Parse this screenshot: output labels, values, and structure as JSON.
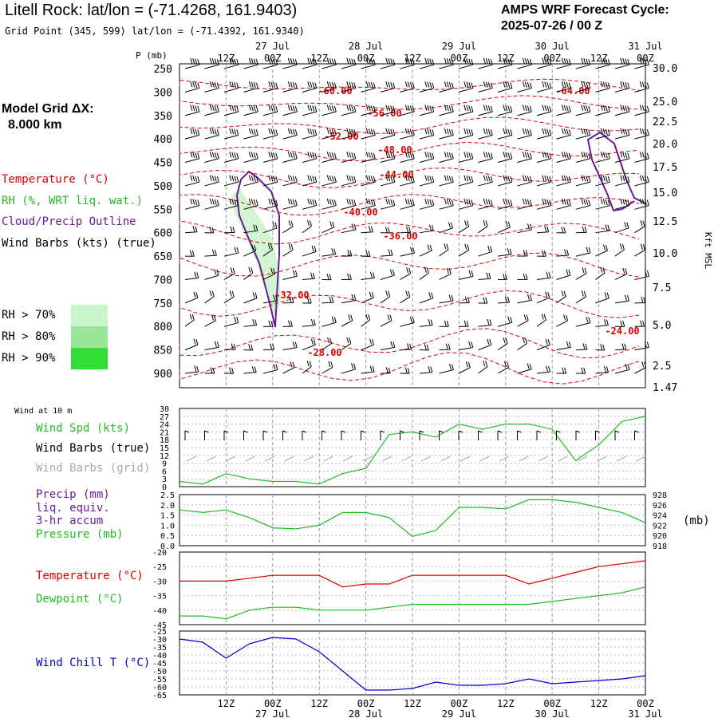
{
  "header": {
    "title": "Litell Rock:  lat/lon = (-71.4268, 161.9403)",
    "grid_point": "Grid Point (345, 599) lat/lon = (-71.4392, 161.9340)",
    "cycle_label": "AMPS WRF Forecast Cycle:",
    "cycle_time": "2025-07-26 / 00  Z"
  },
  "model_grid": {
    "label": "Model Grid ΔX:",
    "value": "8.000 km"
  },
  "legend_upper": {
    "temperature": "Temperature (°C)",
    "rh": "RH (%, WRT liq. wat.)",
    "cloud": "Cloud/Precip Outline",
    "wind": "Wind Barbs (kts) (true)",
    "rh70": "RH > 70%",
    "rh80": "RH > 80%",
    "rh90": "RH > 90%"
  },
  "legend_lower": {
    "wind_at": "Wind at 10 m",
    "wind_spd": "Wind Spd (kts)",
    "barbs_true": "Wind Barbs (true)",
    "barbs_grid": "Wind Barbs (grid)",
    "precip1": "Precip (mm)",
    "precip2": "liq. equiv.",
    "precip3": "3-hr accum",
    "pressure": "Pressure (mb)",
    "pressure_unit": "(mb)",
    "temperature": "Temperature (°C)",
    "dewpoint": "Dewpoint (°C)",
    "windchill": "Wind Chill T (°C)"
  },
  "colors": {
    "temperature": "#dd0000",
    "rh": "#22bb22",
    "cloud": "#6a1b9a",
    "wind": "#000000",
    "wind_grid": "#aaaaaa",
    "windchill": "#0000cc",
    "rh70": "#ccf5cc",
    "rh80": "#99e699",
    "rh90": "#33dd33"
  },
  "chart_data": [
    {
      "type": "line",
      "panel": "time-height cross section",
      "ylabel_left": "P (mb)",
      "ylabel_right": "Kft MSL",
      "pressure_levels": [
        250,
        300,
        350,
        400,
        450,
        500,
        550,
        600,
        650,
        700,
        750,
        800,
        850,
        900
      ],
      "height_ticks_kft": [
        "30.0",
        "25.0",
        "22.5",
        "20.0",
        "17.5",
        "15.0",
        "12.5",
        "10.0",
        "7.5",
        "5.0",
        "2.5",
        "1.47"
      ],
      "time_ticks_top": [
        "12Z",
        "00Z",
        "12Z",
        "00Z",
        "12Z",
        "00Z",
        "12Z",
        "00Z",
        "12Z",
        "00Z"
      ],
      "date_ticks_top": [
        "27 Jul",
        "28 Jul",
        "29 Jul",
        "30 Jul",
        "31 Jul"
      ],
      "temperature_contour_labels": [
        "-60.00",
        "-64.00",
        "-56.00",
        "-52.00",
        "-48.00",
        "-44.00",
        "-40.00",
        "-36.00",
        "-32.00",
        "-28.00",
        "-24.00"
      ]
    },
    {
      "type": "line",
      "panel": "10 m wind speed",
      "ylim": [
        0,
        30
      ],
      "yticks": [
        "30",
        "27",
        "24",
        "21",
        "18",
        "15",
        "12",
        "9",
        "6",
        "3",
        "0"
      ],
      "x_hours": [
        0,
        6,
        12,
        18,
        24,
        30,
        36,
        42,
        48,
        54,
        60,
        66,
        72,
        78,
        84,
        90,
        96,
        102,
        108,
        114,
        120
      ],
      "series": [
        {
          "name": "Wind Spd (kts)",
          "values": [
            2,
            1,
            5,
            3,
            2,
            2,
            1,
            5,
            7,
            20,
            21,
            19,
            24,
            22,
            24,
            24,
            22,
            10,
            16,
            25,
            27
          ]
        }
      ]
    },
    {
      "type": "line",
      "panel": "precip and pressure",
      "ylim_left": [
        0,
        2.5
      ],
      "yticks_left": [
        "2.5",
        "2.0",
        "1.5",
        "1.0",
        "0.5",
        "0.0"
      ],
      "ylim_right": [
        918,
        928
      ],
      "yticks_right": [
        "928",
        "926",
        "924",
        "922",
        "920",
        "918"
      ],
      "series": [
        {
          "name": "Pressure (mb)",
          "x_hours": [
            0,
            6,
            12,
            18,
            24,
            30,
            36,
            42,
            48,
            54,
            60,
            66,
            72,
            78,
            84,
            90,
            96,
            102,
            108,
            114,
            120
          ],
          "values": [
            925,
            924.5,
            925,
            923.5,
            921.5,
            921.3,
            922,
            924.5,
            924.5,
            923.5,
            919.8,
            921,
            925.5,
            925.5,
            925.2,
            927,
            927,
            926.5,
            925.5,
            924.5,
            922.5
          ]
        }
      ]
    },
    {
      "type": "line",
      "panel": "temperature and dewpoint",
      "ylim": [
        -45,
        -20
      ],
      "yticks": [
        "-20",
        "-25",
        "-30",
        "-35",
        "-40",
        "-45"
      ],
      "series": [
        {
          "name": "Temperature (°C)",
          "x_hours": [
            0,
            6,
            12,
            18,
            24,
            30,
            36,
            42,
            48,
            54,
            60,
            66,
            72,
            78,
            84,
            90,
            96,
            102,
            108,
            114,
            120
          ],
          "values": [
            -30,
            -30,
            -30,
            -29,
            -28,
            -28,
            -28,
            -32,
            -31,
            -31,
            -28,
            -28,
            -28,
            -28,
            -28,
            -31,
            -29,
            -27,
            -25,
            -24,
            -23
          ]
        },
        {
          "name": "Dewpoint (°C)",
          "x_hours": [
            0,
            6,
            12,
            18,
            24,
            30,
            36,
            42,
            48,
            54,
            60,
            66,
            72,
            78,
            84,
            90,
            96,
            102,
            108,
            114,
            120
          ],
          "values": [
            -42,
            -42,
            -43,
            -40,
            -39,
            -39,
            -40,
            -40,
            -40,
            -39,
            -38,
            -38,
            -38,
            -38,
            -38,
            -38,
            -37,
            -36,
            -35,
            -34,
            -32
          ]
        }
      ]
    },
    {
      "type": "line",
      "panel": "wind chill",
      "ylim": [
        -65,
        -25
      ],
      "yticks": [
        "-25",
        "-30",
        "-35",
        "-40",
        "-45",
        "-50",
        "-55",
        "-60",
        "-65"
      ],
      "time_ticks_bottom": [
        "12Z",
        "00Z",
        "12Z",
        "00Z",
        "12Z",
        "00Z",
        "12Z",
        "00Z",
        "12Z",
        "00Z"
      ],
      "date_ticks_bottom": [
        "27 Jul",
        "28 Jul",
        "29 Jul",
        "30 Jul",
        "31 Jul"
      ],
      "series": [
        {
          "name": "Wind Chill T (°C)",
          "x_hours": [
            0,
            6,
            12,
            18,
            24,
            30,
            36,
            42,
            48,
            54,
            60,
            66,
            72,
            78,
            84,
            90,
            96,
            102,
            108,
            114,
            120
          ],
          "values": [
            -30,
            -32,
            -42,
            -33,
            -29,
            -30,
            -38,
            -50,
            -62,
            -62,
            -61,
            -57,
            -59,
            -59,
            -58,
            -55,
            -58,
            -57,
            -56,
            -55,
            -53
          ]
        }
      ]
    }
  ]
}
